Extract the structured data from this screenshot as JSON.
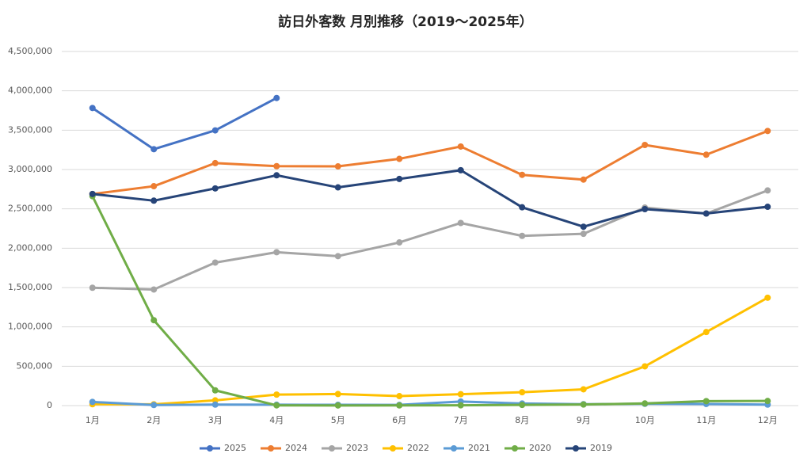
{
  "chart_data": {
    "type": "line",
    "title": "訪日外客数 月別推移（2019～2025年）",
    "categories": [
      "1月",
      "2月",
      "3月",
      "4月",
      "5月",
      "6月",
      "7月",
      "8月",
      "9月",
      "10月",
      "11月",
      "12月"
    ],
    "series": [
      {
        "name": "2025",
        "color": "#4472c4",
        "values": [
          3781629,
          3258400,
          3497600,
          3908900,
          null,
          null,
          null,
          null,
          null,
          null,
          null,
          null
        ]
      },
      {
        "name": "2024",
        "color": "#ed7d31",
        "values": [
          2688100,
          2788000,
          3081600,
          3042900,
          3040100,
          3135600,
          3292500,
          2932500,
          2872200,
          3312200,
          3188400,
          3489800
        ]
      },
      {
        "name": "2023",
        "color": "#a5a5a5",
        "values": [
          1497472,
          1475455,
          1817500,
          1949100,
          1899200,
          2073300,
          2320600,
          2156900,
          2182900,
          2516500,
          2440100,
          2734000
        ]
      },
      {
        "name": "2022",
        "color": "#ffc000",
        "values": [
          17766,
          16719,
          66121,
          139548,
          147046,
          120430,
          144578,
          169902,
          206641,
          498646,
          934599,
          1371000
        ]
      },
      {
        "name": "2021",
        "color": "#5b9bd5",
        "values": [
          46461,
          7355,
          12276,
          10853,
          10035,
          9250,
          51055,
          25916,
          17719,
          22113,
          20695,
          12084
        ]
      },
      {
        "name": "2020",
        "color": "#70ad47",
        "values": [
          2661022,
          1085147,
          193658,
          2917,
          1663,
          2565,
          3782,
          8658,
          13684,
          27386,
          56673,
          58673
        ]
      },
      {
        "name": "2019",
        "color": "#264478",
        "values": [
          2689339,
          2604322,
          2760136,
          2926685,
          2773091,
          2880041,
          2991189,
          2520134,
          2272883,
          2496568,
          2441274,
          2526387
        ]
      }
    ],
    "ylim": [
      0,
      4500000
    ],
    "yticks": [
      0,
      {
        "value": 500000,
        "label": "500,000"
      },
      {
        "value": 1000000,
        "label": "1,000,000"
      },
      {
        "value": 1500000,
        "label": "1,500,000"
      },
      {
        "value": 2000000,
        "label": "2,000,000"
      },
      {
        "value": 2500000,
        "label": "2,500,000"
      },
      {
        "value": 3000000,
        "label": "3,000,000"
      },
      {
        "value": 3500000,
        "label": "3,500,000"
      },
      {
        "value": 4000000,
        "label": "4,000,000"
      },
      {
        "value": 4500000,
        "label": "4,500,000"
      }
    ],
    "grid": true,
    "legend": "bottom"
  }
}
